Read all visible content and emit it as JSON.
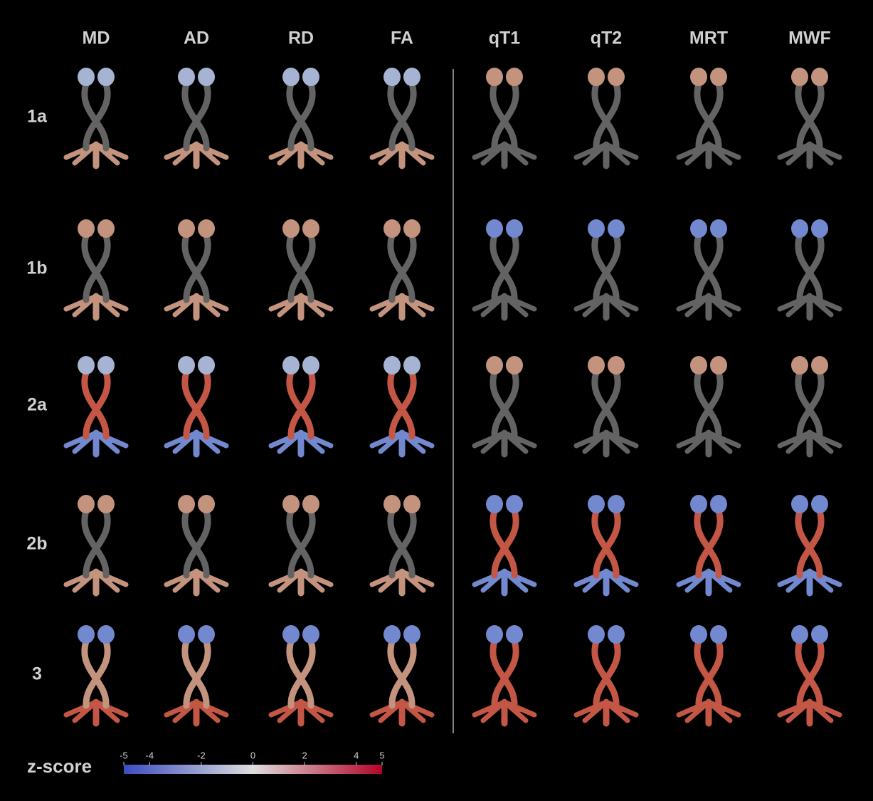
{
  "columns": [
    "MD",
    "AD",
    "RD",
    "FA",
    "qT1",
    "qT2",
    "MRT",
    "MWF"
  ],
  "rows": [
    "1a",
    "1b",
    "2a",
    "2b",
    "3"
  ],
  "colorbar": {
    "label": "z-score",
    "range": [
      -5,
      5
    ],
    "ticks": [
      -5,
      -4,
      -2,
      0,
      2,
      4,
      5
    ]
  }
}
